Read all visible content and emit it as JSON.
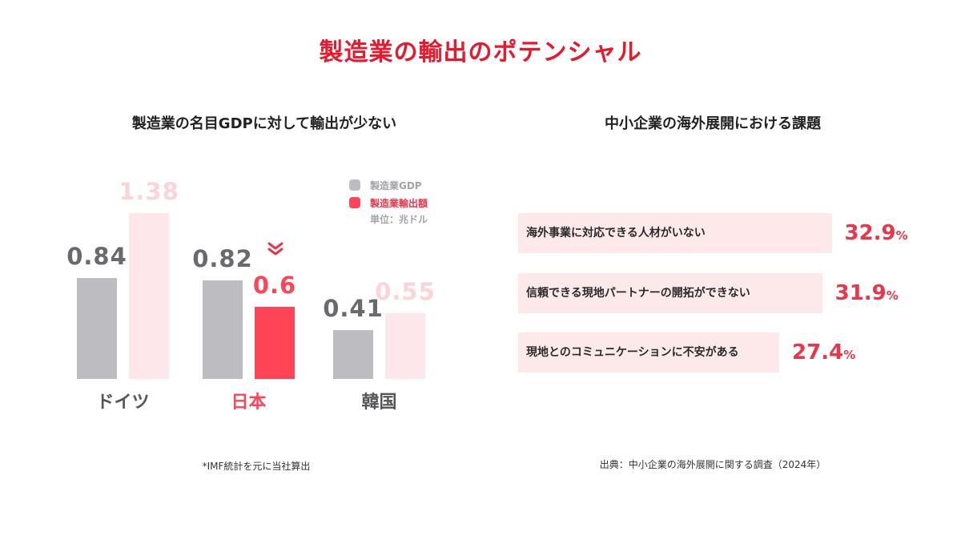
{
  "title": "製造業の輸出のポテンシャル",
  "left_panel": {
    "subtitle": "製造業の名目GDPに対して輸出が少ない",
    "note": "*IMF統計を元に当社算出",
    "legend": {
      "gdp": "製造業GDP",
      "export": "製造業輸出額",
      "unit": "単位：兆ドル"
    }
  },
  "right_panel": {
    "subtitle": "中小企業の海外展開における課題",
    "source": "出典：中小企業の海外展開に関する調査（2024年）"
  },
  "colors": {
    "title": "#e8192c",
    "gdp": "#bdbdc1",
    "export_highlight": "#ff4458",
    "export_faded": "#fde7ea",
    "export_faded_label": "#fbd4d9",
    "issue_bg": "#fde8ea",
    "issue_value": "#e8364a"
  },
  "chart_data": [
    {
      "type": "bar",
      "title": "製造業の名目GDPに対して輸出が少ない",
      "categories": [
        "ドイツ",
        "日本",
        "韓国"
      ],
      "series": [
        {
          "name": "製造業GDP",
          "values": [
            0.84,
            0.82,
            0.41
          ],
          "labels": [
            "0.84",
            "0.82",
            "0.41"
          ]
        },
        {
          "name": "製造業輸出額",
          "values": [
            1.38,
            0.6,
            0.55
          ],
          "labels": [
            "1.38",
            "0.6",
            "0.55"
          ]
        }
      ],
      "highlight_category": "日本",
      "unit": "単位：兆ドル",
      "legend_position": "top-right",
      "grid": false
    },
    {
      "type": "bar",
      "orientation": "horizontal",
      "title": "中小企業の海外展開における課題",
      "categories": [
        "海外事業に対応できる人材がいない",
        "信頼できる現地パートナーの開拓ができない",
        "現地とのコミュニケーションに不安がある"
      ],
      "values": [
        32.9,
        31.9,
        27.4
      ],
      "value_labels": [
        "32.9",
        "31.9",
        "27.4"
      ],
      "unit_suffix": "%",
      "grid": false
    }
  ]
}
